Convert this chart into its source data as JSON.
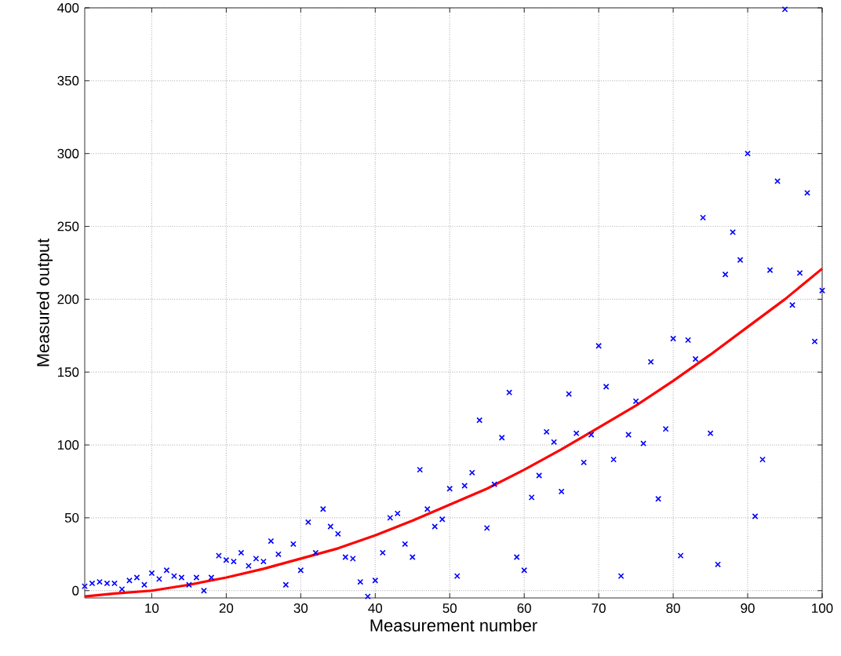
{
  "chart_data": {
    "type": "scatter",
    "xlabel": "Measurement number",
    "ylabel": "Measured output",
    "x": [
      1,
      2,
      3,
      4,
      5,
      6,
      7,
      8,
      9,
      10,
      11,
      12,
      13,
      14,
      15,
      16,
      17,
      18,
      19,
      20,
      21,
      22,
      23,
      24,
      25,
      26,
      27,
      28,
      29,
      30,
      31,
      32,
      33,
      34,
      35,
      36,
      37,
      38,
      39,
      40,
      41,
      42,
      43,
      44,
      45,
      46,
      47,
      48,
      49,
      50,
      51,
      52,
      53,
      54,
      55,
      56,
      57,
      58,
      59,
      60,
      61,
      62,
      63,
      64,
      65,
      66,
      67,
      68,
      69,
      70,
      71,
      72,
      73,
      74,
      75,
      76,
      77,
      78,
      79,
      80,
      81,
      82,
      83,
      84,
      85,
      86,
      87,
      88,
      89,
      90,
      91,
      92,
      93,
      94,
      95,
      96,
      97,
      98,
      99,
      100
    ],
    "series": [
      {
        "color": "#0000ff",
        "marker": "cross",
        "values": [
          3,
          5,
          6,
          5,
          5,
          1,
          7,
          9,
          4,
          12,
          8,
          14,
          10,
          9,
          4,
          9,
          0,
          9,
          24,
          21,
          20,
          26,
          17,
          22,
          20,
          34,
          25,
          4,
          32,
          14,
          47,
          26,
          56,
          44,
          39,
          23,
          22,
          6,
          -4,
          7,
          26,
          50,
          53,
          32,
          23,
          83,
          56,
          44,
          49,
          70,
          10,
          72,
          81,
          117,
          43,
          73,
          105,
          136,
          23,
          14,
          64,
          79,
          109,
          102,
          68,
          135,
          108,
          88,
          107,
          168,
          140,
          90,
          10,
          107,
          130,
          101,
          157,
          63,
          111,
          173,
          24,
          172,
          159,
          256,
          108,
          18,
          217,
          246,
          227,
          300,
          51,
          90,
          220,
          281,
          399,
          196,
          218,
          273,
          171,
          206
        ]
      },
      {
        "type": "line",
        "color": "#ff0000",
        "marker": "none",
        "line_style": "solid",
        "x": [
          1,
          5,
          10,
          15,
          20,
          25,
          30,
          35,
          40,
          45,
          50,
          55,
          60,
          65,
          70,
          75,
          80,
          85,
          90,
          95,
          100
        ],
        "values": [
          -4,
          -2,
          0,
          4,
          9,
          15,
          22,
          29,
          38,
          48,
          59,
          70,
          83,
          97,
          112,
          127,
          144,
          162,
          181,
          200,
          221
        ]
      }
    ],
    "xlim": [
      1,
      100
    ],
    "ylim": [
      -5,
      400
    ],
    "xticks": [
      10,
      20,
      30,
      40,
      50,
      60,
      70,
      80,
      90,
      100
    ],
    "yticks": [
      0,
      50,
      100,
      150,
      200,
      250,
      300,
      350,
      400
    ],
    "grid": true
  }
}
